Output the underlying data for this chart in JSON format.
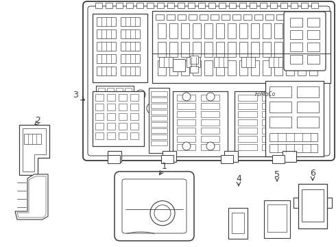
{
  "bg_color": "#ffffff",
  "line_color": "#3a3a3a",
  "fig_width": 4.9,
  "fig_height": 3.6,
  "dpi": 100
}
